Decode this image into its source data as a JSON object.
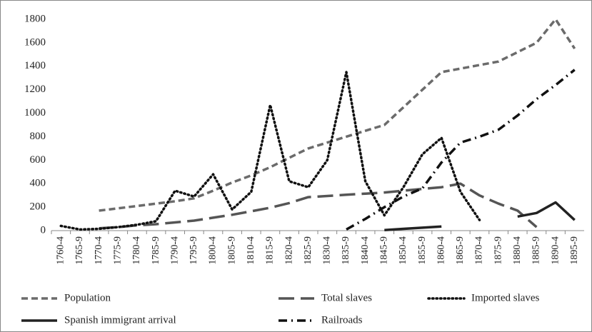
{
  "chart_data": {
    "type": "line",
    "categories": [
      "1760-4",
      "1765-9",
      "1770-4",
      "1775-9",
      "1780-4",
      "1785-9",
      "1790-4",
      "1795-9",
      "1800-4",
      "1805-9",
      "1810-4",
      "1815-9",
      "1820-4",
      "1825-9",
      "1830-4",
      "1835-9",
      "1840-4",
      "1845-9",
      "1850-4",
      "1855-9",
      "1860-4",
      "1865-9",
      "1870-4",
      "1875-9",
      "1880-4",
      "1885-9",
      "1890-4",
      "1895-9"
    ],
    "ylim": [
      0,
      1800
    ],
    "yticks": [
      0,
      200,
      400,
      600,
      800,
      1000,
      1200,
      1400,
      1600,
      1800
    ],
    "series": [
      {
        "name": "Population",
        "color": "#6b6b6b",
        "style": "dashed",
        "values": [
          null,
          null,
          170,
          190,
          210,
          230,
          250,
          275,
          340,
          410,
          470,
          540,
          620,
          700,
          750,
          800,
          850,
          900,
          1050,
          1200,
          1350,
          1380,
          1410,
          1440,
          1520,
          1600,
          1800,
          1550
        ]
      },
      {
        "name": "Total slaves",
        "color": "#555555",
        "style": "long-dashed",
        "values": [
          null,
          null,
          20,
          30,
          45,
          55,
          70,
          85,
          110,
          135,
          165,
          195,
          235,
          285,
          295,
          305,
          315,
          325,
          340,
          355,
          370,
          400,
          300,
          230,
          170,
          30,
          null,
          null
        ]
      },
      {
        "name": "Imported slaves",
        "color": "#111111",
        "style": "dotted",
        "values": [
          40,
          10,
          15,
          30,
          50,
          80,
          340,
          290,
          480,
          180,
          330,
          1070,
          420,
          370,
          600,
          1350,
          420,
          130,
          370,
          650,
          790,
          330,
          90,
          null,
          null,
          null,
          null,
          null
        ]
      },
      {
        "name": "Spanish immigrant arrival",
        "color": "#222222",
        "style": "solid",
        "values": [
          null,
          null,
          null,
          null,
          null,
          null,
          null,
          null,
          null,
          null,
          null,
          null,
          null,
          null,
          null,
          null,
          null,
          5,
          15,
          25,
          35,
          null,
          null,
          null,
          120,
          150,
          240,
          90
        ]
      },
      {
        "name": "Railroads",
        "color": "#111111",
        "style": "dash-dot",
        "values": [
          null,
          null,
          null,
          null,
          null,
          null,
          null,
          null,
          null,
          null,
          null,
          null,
          null,
          null,
          null,
          10,
          100,
          200,
          290,
          360,
          580,
          750,
          800,
          860,
          980,
          1120,
          1240,
          1370
        ]
      }
    ]
  }
}
